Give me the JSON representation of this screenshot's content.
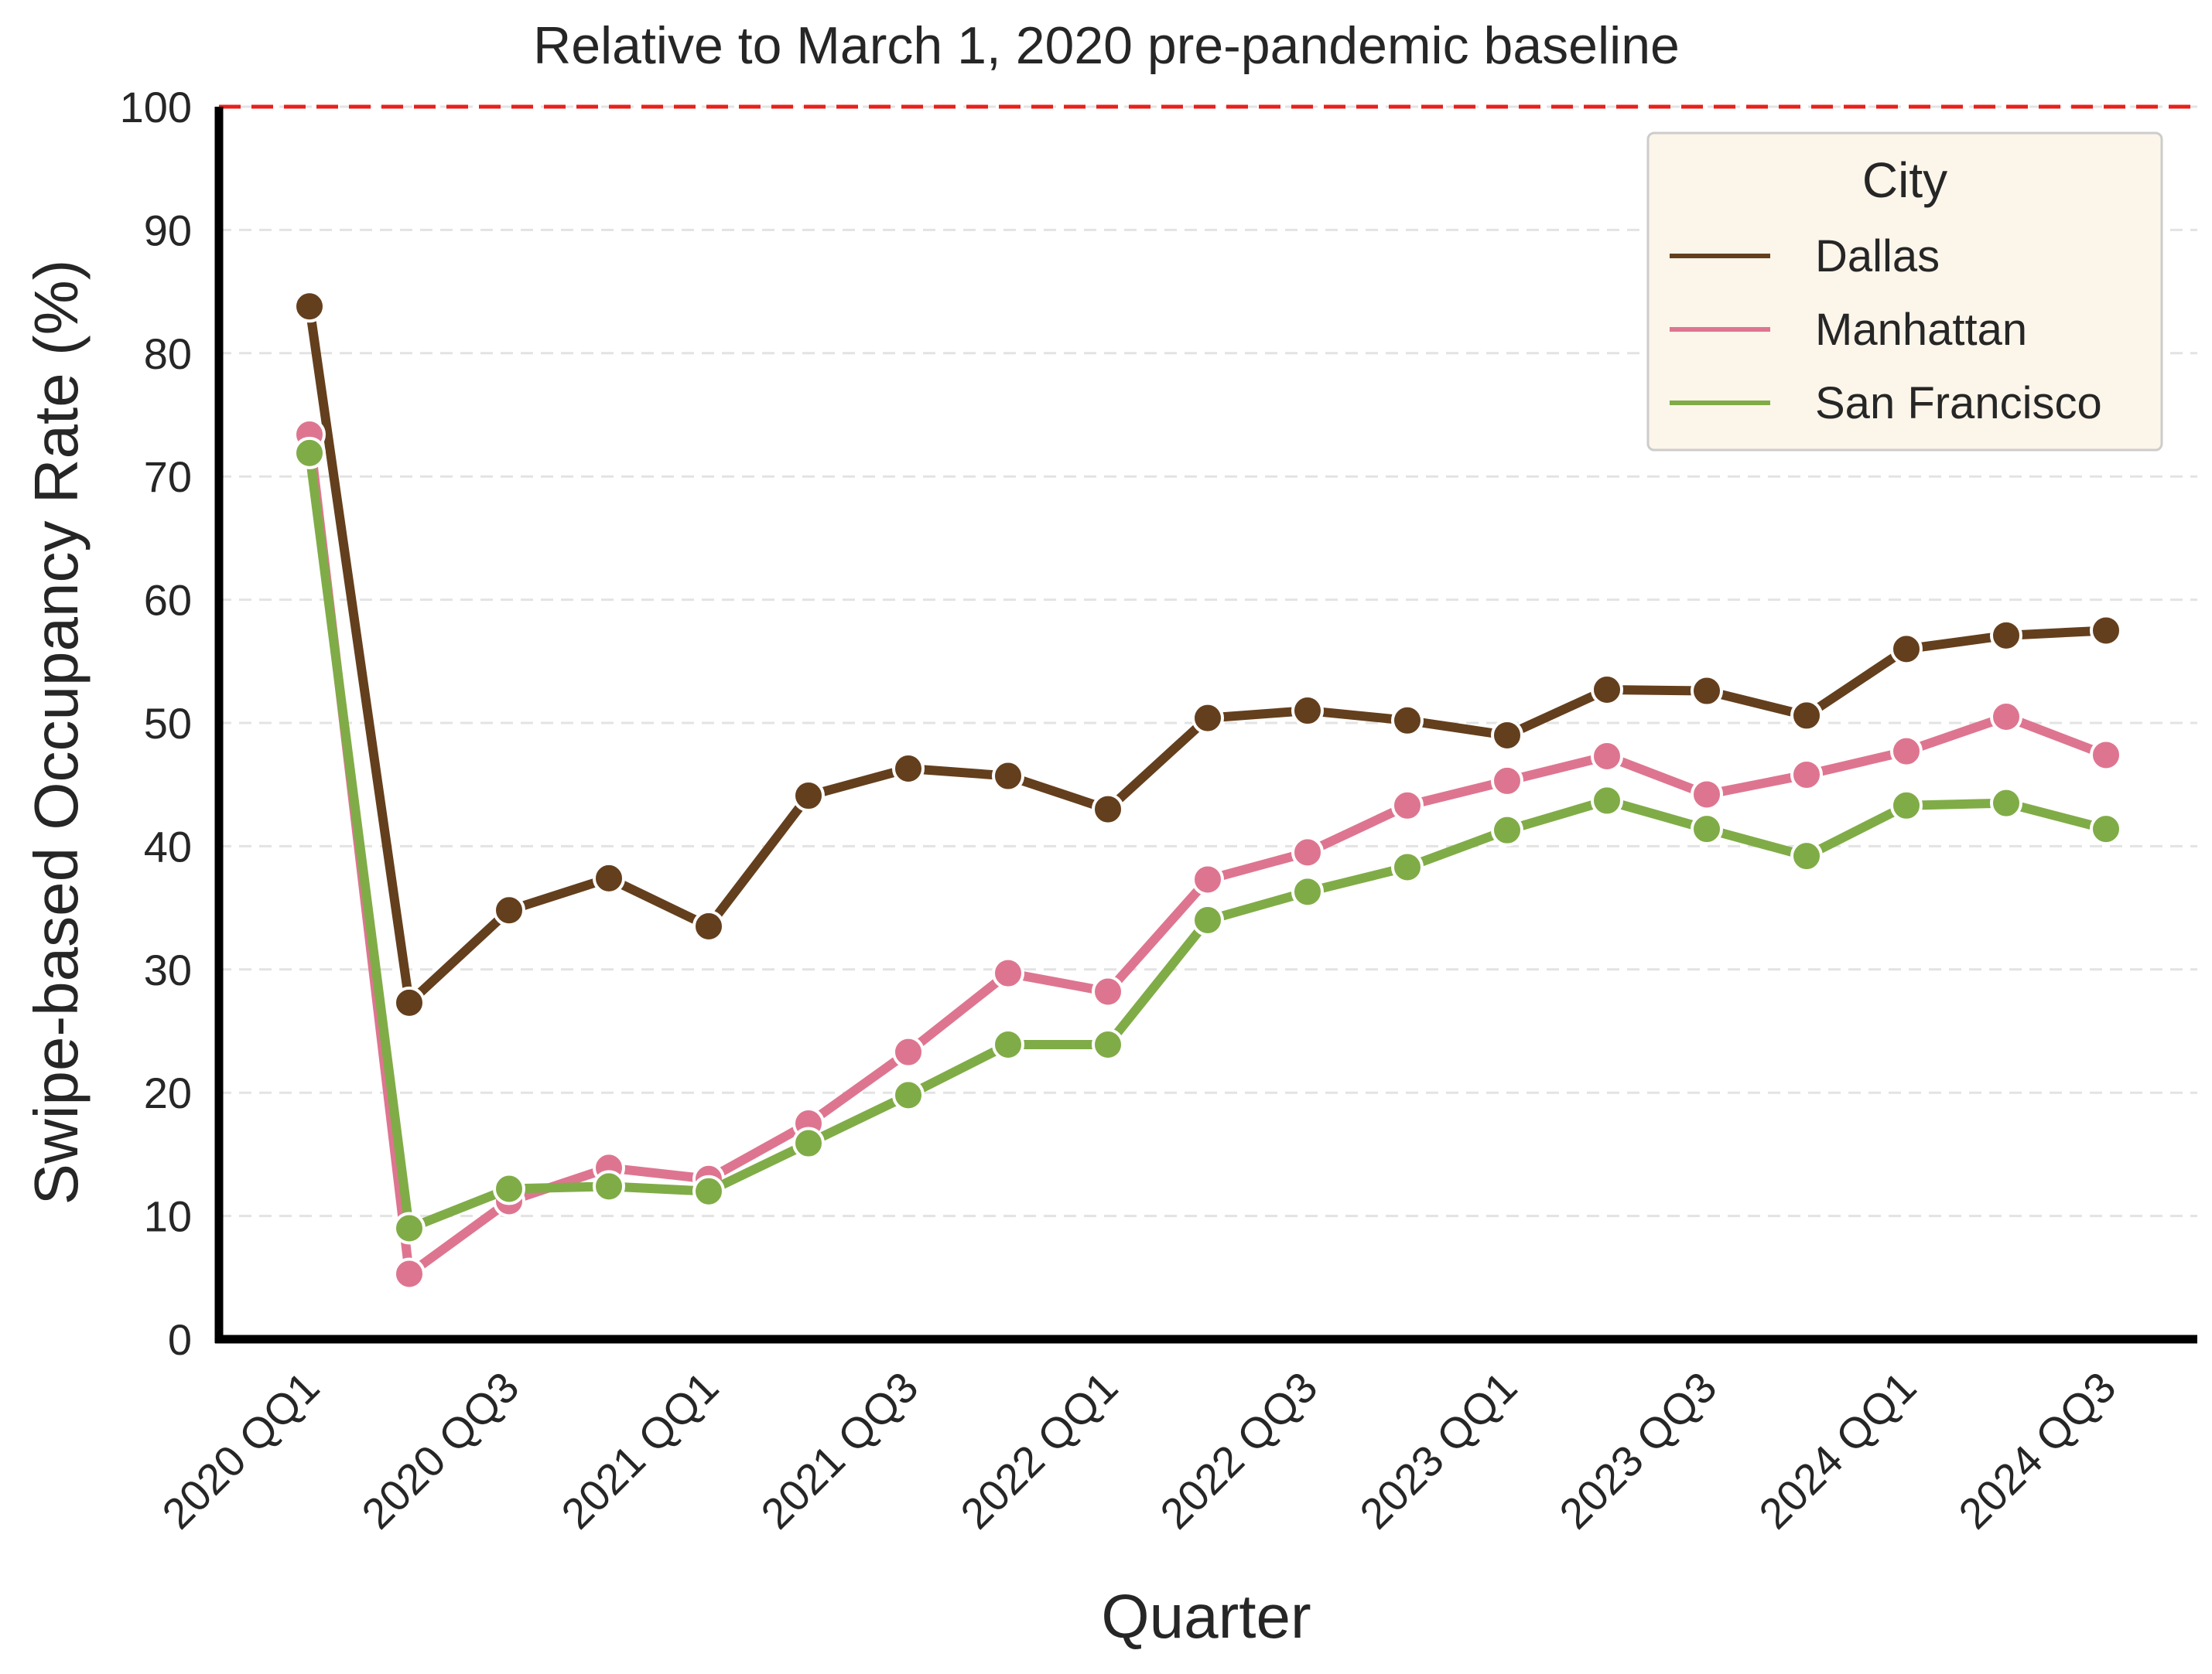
{
  "chart_data": {
    "type": "line",
    "title": "Relative to March 1, 2020 pre-pandemic baseline",
    "xlabel": "Quarter",
    "ylabel": "Swipe-based Occupancy Rate (%)",
    "ylim": [
      0,
      100
    ],
    "yticks": [
      "0",
      "10",
      "20",
      "30",
      "40",
      "50",
      "60",
      "70",
      "80",
      "90",
      "100"
    ],
    "x": [
      "2020 QQ1",
      "2020 QQ2",
      "2020 QQ3",
      "2020 QQ4",
      "2021 QQ1",
      "2021 QQ2",
      "2021 QQ3",
      "2021 QQ4",
      "2022 QQ1",
      "2022 QQ2",
      "2022 QQ3",
      "2022 QQ4",
      "2023 QQ1",
      "2023 QQ2",
      "2023 QQ3",
      "2023 QQ4",
      "2024 QQ1",
      "2024 QQ2",
      "2024 QQ3"
    ],
    "xtick_labels": [
      "2020 QQ1",
      "2020 QQ3",
      "2021 QQ1",
      "2021 QQ3",
      "2022 QQ1",
      "2022 QQ3",
      "2023 QQ1",
      "2023 QQ3",
      "2024 QQ1",
      "2024 QQ3"
    ],
    "reference_line": {
      "y": 100,
      "color": "#e8201b",
      "style": "dashed"
    },
    "grid": {
      "y": true,
      "style": "dashed"
    },
    "legend": {
      "title": "City",
      "position": "top-right"
    },
    "series": [
      {
        "name": "Dallas",
        "color": "#643f1d",
        "values": [
          83.8,
          27.3,
          34.8,
          37.4,
          33.5,
          44.1,
          46.3,
          45.7,
          43.0,
          50.4,
          51.0,
          50.2,
          49.0,
          52.7,
          52.6,
          50.6,
          56.0,
          57.1,
          57.5
        ]
      },
      {
        "name": "Manhattan",
        "color": "#de7590",
        "values": [
          73.4,
          5.3,
          11.2,
          13.9,
          13.0,
          17.5,
          23.3,
          29.7,
          28.2,
          37.3,
          39.5,
          43.3,
          45.3,
          47.3,
          44.2,
          45.8,
          47.7,
          50.5,
          47.4
        ]
      },
      {
        "name": "San Francisco",
        "color": "#80ac47",
        "values": [
          71.9,
          9.0,
          12.2,
          12.4,
          12.0,
          15.9,
          19.8,
          23.9,
          23.9,
          34.0,
          36.3,
          38.3,
          41.3,
          43.7,
          41.4,
          39.2,
          43.3,
          43.5,
          41.4
        ]
      }
    ]
  }
}
